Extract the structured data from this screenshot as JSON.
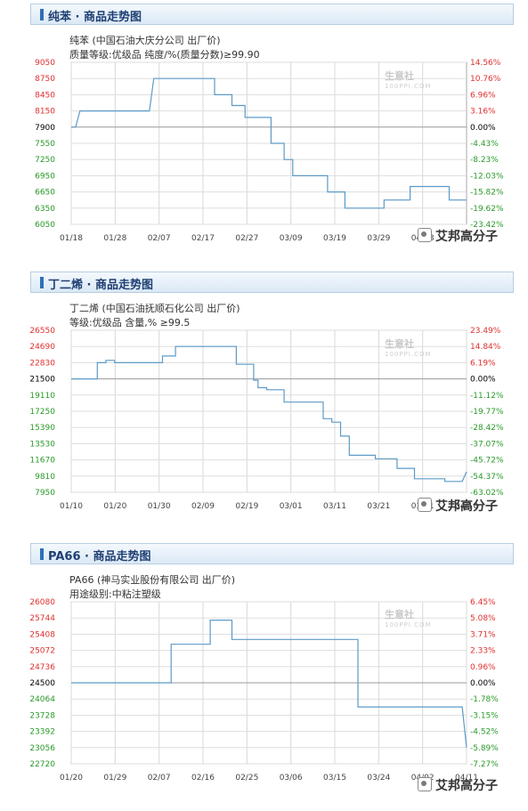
{
  "charts": [
    {
      "header_title": "纯苯 · 商品走势图",
      "subtitle_line1": "纯苯 (中国石油大庆分公司 出厂价)",
      "subtitle_line2": "质量等级:优级品 纯度/%(质量分数)≥99.90",
      "logo_text": "生意社",
      "logo_sub": "100PPI.COM",
      "watermark": "艾邦高分子"
    },
    {
      "header_title": "丁二烯 · 商品走势图",
      "subtitle_line1": "丁二烯 (中国石油抚顺石化公司 出厂价)",
      "subtitle_line2": "等级:优级品 含量,% ≥99.5",
      "logo_text": "生意社",
      "logo_sub": "100PPI.COM",
      "watermark": "艾邦高分子"
    },
    {
      "header_title": "PA66 · 商品走势图",
      "subtitle_line1": "PA66 (神马实业股份有限公司 出厂价)",
      "subtitle_line2": "用途级别:中粘注塑级",
      "logo_text": "生意社",
      "logo_sub": "100PPI.COM",
      "watermark": "艾邦高分子"
    }
  ],
  "colors": {
    "line": "#5b9bc8",
    "left_up": "#e03030",
    "left_down": "#2a9a2a",
    "right_up": "#e03030",
    "right_down": "#2a9a2a",
    "baseline_label": "#000000"
  },
  "chart_data": [
    {
      "type": "line",
      "title": "",
      "baseline": 7900,
      "y_ticks": [
        9050,
        8750,
        8450,
        8150,
        7900,
        7550,
        7250,
        6950,
        6650,
        6350,
        6050
      ],
      "right_ticks": [
        "14.56%",
        "10.76%",
        "6.96%",
        "3.16%",
        "0.00%",
        "-4.43%",
        "-8.23%",
        "-12.03%",
        "-15.82%",
        "-19.62%",
        "-23.42%"
      ],
      "x_ticks": [
        "01/18",
        "01/28",
        "02/07",
        "02/17",
        "02/27",
        "03/09",
        "03/19",
        "03/29",
        "04/08"
      ],
      "x_range": [
        0,
        91
      ],
      "ylim": [
        6050,
        9050
      ],
      "series": [
        {
          "x": 0,
          "y": 7900
        },
        {
          "x": 1,
          "y": 7900
        },
        {
          "x": 2,
          "y": 8150
        },
        {
          "x": 16,
          "y": 8150
        },
        {
          "x": 18,
          "y": 8150
        },
        {
          "x": 18,
          "y": 8150
        },
        {
          "x": 18.5,
          "y": 8450
        },
        {
          "x": 19,
          "y": 8750
        },
        {
          "x": 33,
          "y": 8750
        },
        {
          "x": 33,
          "y": 8450
        },
        {
          "x": 37,
          "y": 8450
        },
        {
          "x": 37,
          "y": 8250
        },
        {
          "x": 40,
          "y": 8250
        },
        {
          "x": 40,
          "y": 8050
        },
        {
          "x": 46,
          "y": 8050
        },
        {
          "x": 46,
          "y": 7550
        },
        {
          "x": 49,
          "y": 7550
        },
        {
          "x": 49,
          "y": 7250
        },
        {
          "x": 51,
          "y": 7250
        },
        {
          "x": 51,
          "y": 6950
        },
        {
          "x": 59,
          "y": 6950
        },
        {
          "x": 59,
          "y": 6650
        },
        {
          "x": 63,
          "y": 6650
        },
        {
          "x": 63,
          "y": 6350
        },
        {
          "x": 72,
          "y": 6350
        },
        {
          "x": 72,
          "y": 6500
        },
        {
          "x": 78,
          "y": 6500
        },
        {
          "x": 78,
          "y": 6750
        },
        {
          "x": 87,
          "y": 6750
        },
        {
          "x": 87,
          "y": 6500
        },
        {
          "x": 91,
          "y": 6500
        }
      ]
    },
    {
      "type": "line",
      "title": "",
      "baseline": 21500,
      "y_ticks": [
        26550,
        24690,
        22830,
        21500,
        19110,
        17250,
        15390,
        13530,
        11670,
        9810,
        7950
      ],
      "right_ticks": [
        "23.49%",
        "14.84%",
        "6.19%",
        "0.00%",
        "-11.12%",
        "-19.77%",
        "-28.42%",
        "-37.07%",
        "-45.72%",
        "-54.37%",
        "-63.02%"
      ],
      "x_ticks": [
        "01/10",
        "01/20",
        "01/30",
        "02/09",
        "02/19",
        "03/01",
        "03/11",
        "03/21",
        "03/31",
        "04/10"
      ],
      "x_range": [
        0,
        91
      ],
      "ylim": [
        7950,
        26550
      ],
      "series": [
        {
          "x": 0,
          "y": 21500
        },
        {
          "x": 6,
          "y": 21500
        },
        {
          "x": 6,
          "y": 22830
        },
        {
          "x": 8,
          "y": 22830
        },
        {
          "x": 8,
          "y": 23100
        },
        {
          "x": 10,
          "y": 23100
        },
        {
          "x": 10,
          "y": 22830
        },
        {
          "x": 21,
          "y": 22830
        },
        {
          "x": 21,
          "y": 23600
        },
        {
          "x": 24,
          "y": 23600
        },
        {
          "x": 24,
          "y": 24690
        },
        {
          "x": 38,
          "y": 24690
        },
        {
          "x": 38,
          "y": 22700
        },
        {
          "x": 42,
          "y": 22700
        },
        {
          "x": 42,
          "y": 21300
        },
        {
          "x": 43,
          "y": 21300
        },
        {
          "x": 43,
          "y": 20200
        },
        {
          "x": 45,
          "y": 20200
        },
        {
          "x": 45,
          "y": 19900
        },
        {
          "x": 49,
          "y": 19900
        },
        {
          "x": 49,
          "y": 18300
        },
        {
          "x": 58,
          "y": 18300
        },
        {
          "x": 58,
          "y": 16400
        },
        {
          "x": 60,
          "y": 16400
        },
        {
          "x": 60,
          "y": 16000
        },
        {
          "x": 62,
          "y": 16000
        },
        {
          "x": 62,
          "y": 14400
        },
        {
          "x": 64,
          "y": 14400
        },
        {
          "x": 64,
          "y": 12200
        },
        {
          "x": 70,
          "y": 12200
        },
        {
          "x": 70,
          "y": 11800
        },
        {
          "x": 75,
          "y": 11800
        },
        {
          "x": 75,
          "y": 10700
        },
        {
          "x": 79,
          "y": 10700
        },
        {
          "x": 79,
          "y": 9500
        },
        {
          "x": 86,
          "y": 9500
        },
        {
          "x": 86,
          "y": 9200
        },
        {
          "x": 90,
          "y": 9200
        },
        {
          "x": 91,
          "y": 10300
        }
      ]
    },
    {
      "type": "line",
      "title": "",
      "baseline": 24500,
      "y_ticks": [
        26080,
        25744,
        25408,
        25072,
        24736,
        24500,
        24064,
        23728,
        23392,
        23056,
        22720
      ],
      "right_ticks": [
        "6.45%",
        "5.08%",
        "3.71%",
        "2.33%",
        "0.96%",
        "0.00%",
        "-1.78%",
        "-3.15%",
        "-4.52%",
        "-5.89%",
        "-7.27%"
      ],
      "x_ticks": [
        "01/20",
        "01/29",
        "02/07",
        "02/16",
        "02/25",
        "03/06",
        "03/15",
        "03/24",
        "04/02",
        "04/11"
      ],
      "x_range": [
        0,
        91
      ],
      "ylim": [
        22720,
        26080
      ],
      "series": [
        {
          "x": 0,
          "y": 24500
        },
        {
          "x": 23,
          "y": 24500
        },
        {
          "x": 23,
          "y": 25200
        },
        {
          "x": 32,
          "y": 25200
        },
        {
          "x": 32,
          "y": 25700
        },
        {
          "x": 37,
          "y": 25700
        },
        {
          "x": 37,
          "y": 25300
        },
        {
          "x": 66,
          "y": 25300
        },
        {
          "x": 66,
          "y": 23900
        },
        {
          "x": 90,
          "y": 23900
        },
        {
          "x": 91,
          "y": 23056
        }
      ]
    }
  ]
}
